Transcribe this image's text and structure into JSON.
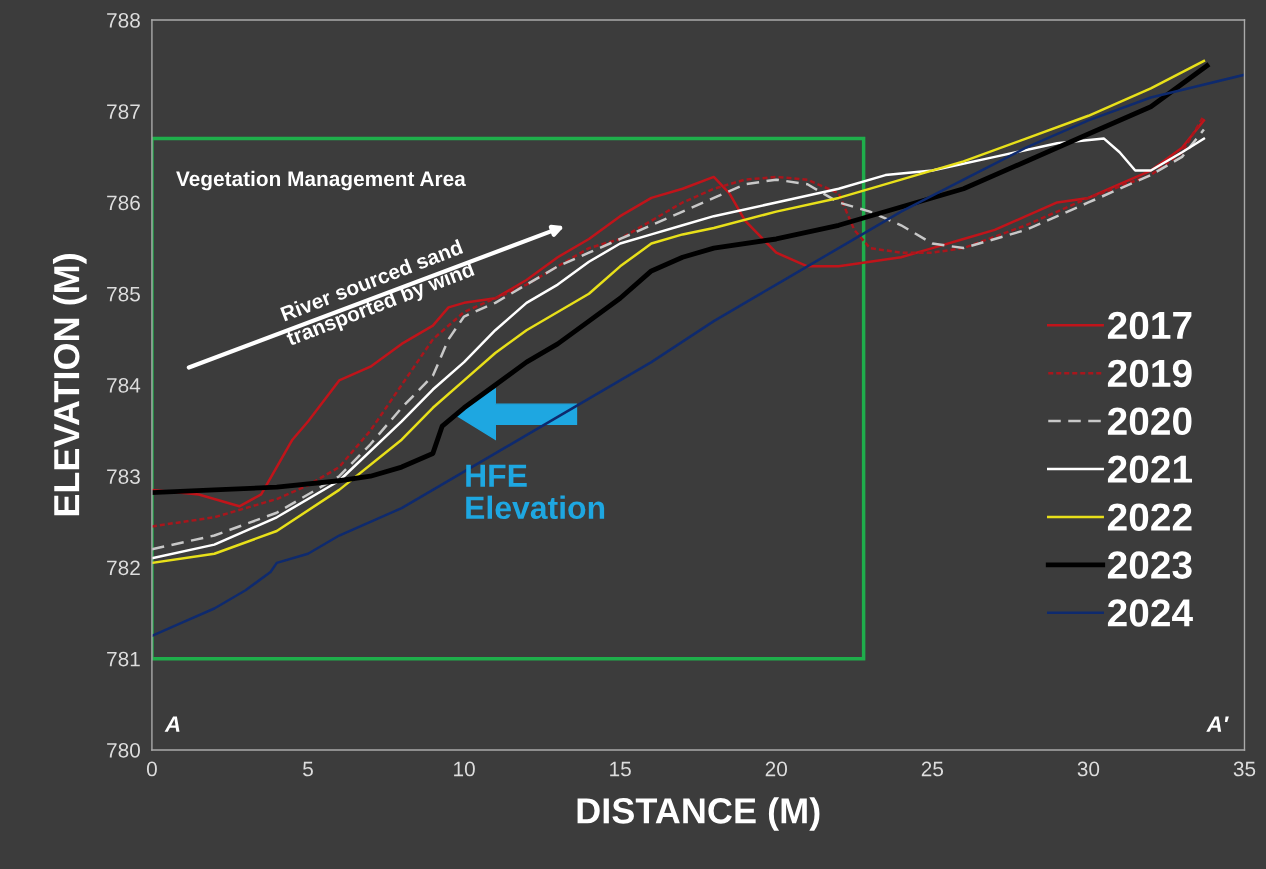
{
  "chart_data": {
    "type": "line",
    "xlabel": "DISTANCE (M)",
    "ylabel": "ELEVATION (M)",
    "xlim": [
      0,
      35
    ],
    "xticks": [
      0,
      5,
      10,
      15,
      20,
      25,
      30,
      35
    ],
    "ylim": [
      780,
      788
    ],
    "yticks": [
      780,
      781,
      782,
      783,
      784,
      785,
      786,
      787,
      788
    ],
    "grid": false,
    "legend": "right",
    "marker": "none",
    "annotations": [
      "Vegetation Management Area",
      "River sourced sand transported by wind",
      {
        "text": "HFE Elevation",
        "x": 9.4,
        "y": 783.55
      },
      "A",
      "A′"
    ],
    "series": [
      {
        "name": "2017",
        "color": "#c0141a",
        "line_style": "solid",
        "x": [
          0,
          1.5,
          2.8,
          3.5,
          4.5,
          5,
          6,
          7,
          8,
          9,
          9.5,
          10,
          11,
          12,
          13,
          14,
          15,
          16,
          17,
          18,
          18.5,
          19,
          20,
          21,
          22,
          23,
          24,
          25,
          26,
          27,
          28,
          29,
          30,
          31,
          32,
          33,
          33.7
        ],
        "values": [
          782.85,
          782.8,
          782.67,
          782.8,
          783.4,
          783.6,
          784.05,
          784.2,
          784.45,
          784.65,
          784.85,
          784.9,
          784.95,
          785.15,
          785.4,
          785.6,
          785.85,
          786.05,
          786.15,
          786.28,
          786.1,
          785.8,
          785.45,
          785.3,
          785.3,
          785.35,
          785.4,
          785.5,
          785.6,
          785.7,
          785.85,
          786.0,
          786.05,
          786.2,
          786.35,
          786.6,
          786.9
        ]
      },
      {
        "name": "2019",
        "color": "#a8161c",
        "line_style": "dotted",
        "x": [
          0,
          2,
          4,
          5,
          6,
          7,
          8,
          9,
          10,
          11,
          12,
          13,
          14,
          15,
          16,
          17,
          18,
          19,
          20,
          21,
          22,
          22.5,
          23,
          24,
          25,
          26,
          28,
          30,
          32,
          33,
          33.7
        ],
        "values": [
          782.45,
          782.55,
          782.75,
          782.9,
          783.1,
          783.5,
          784.0,
          784.5,
          784.8,
          784.95,
          785.1,
          785.3,
          785.5,
          785.6,
          785.8,
          786.0,
          786.15,
          786.25,
          786.28,
          786.25,
          786.1,
          785.7,
          785.5,
          785.45,
          785.45,
          785.5,
          785.75,
          786.05,
          786.3,
          786.55,
          786.95
        ]
      },
      {
        "name": "2020",
        "color": "#c8c8c8",
        "line_style": "dashed",
        "x": [
          0,
          2,
          4,
          6,
          7,
          8,
          9,
          9.5,
          10,
          11,
          12,
          13,
          14,
          15,
          16,
          17,
          18,
          19,
          20,
          21,
          22,
          23,
          24,
          25,
          26,
          28,
          30,
          32,
          33,
          33.7
        ],
        "values": [
          782.2,
          782.35,
          782.6,
          783.0,
          783.35,
          783.75,
          784.1,
          784.5,
          784.75,
          784.9,
          785.1,
          785.3,
          785.45,
          785.6,
          785.75,
          785.9,
          786.05,
          786.2,
          786.25,
          786.2,
          786.0,
          785.9,
          785.75,
          785.55,
          785.5,
          785.7,
          786.0,
          786.3,
          786.5,
          786.8
        ]
      },
      {
        "name": "2021",
        "color": "#ffffff",
        "line_style": "solid",
        "x": [
          0,
          2,
          4,
          6,
          8,
          9,
          10,
          11,
          12,
          13,
          14,
          15,
          16,
          17,
          18,
          20,
          22,
          23.5,
          25,
          27,
          29,
          30.5,
          31,
          31.5,
          32,
          33,
          33.7
        ],
        "values": [
          782.1,
          782.25,
          782.55,
          782.95,
          783.6,
          783.95,
          784.25,
          784.6,
          784.9,
          785.1,
          785.35,
          785.55,
          785.65,
          785.75,
          785.85,
          786.0,
          786.15,
          786.3,
          786.35,
          786.5,
          786.65,
          786.7,
          786.55,
          786.35,
          786.35,
          786.55,
          786.7
        ]
      },
      {
        "name": "2022",
        "color": "#e8e01a",
        "line_style": "solid",
        "x": [
          0,
          2,
          4,
          6,
          8,
          9,
          10,
          11,
          12,
          13,
          14,
          15,
          16,
          17,
          18,
          20,
          22,
          24,
          26,
          28,
          30,
          32,
          33.7
        ],
        "values": [
          782.05,
          782.15,
          782.4,
          782.85,
          783.4,
          783.75,
          784.05,
          784.35,
          784.6,
          784.8,
          785.0,
          785.3,
          785.55,
          785.65,
          785.72,
          785.9,
          786.05,
          786.25,
          786.45,
          786.7,
          786.95,
          787.25,
          787.55
        ]
      },
      {
        "name": "2023",
        "color": "#000000",
        "line_style": "solid",
        "x": [
          0,
          2,
          4,
          6,
          7,
          8,
          9,
          9.3,
          10,
          11,
          12,
          13,
          14,
          15,
          16,
          17,
          18,
          20,
          22,
          24,
          26,
          28,
          30,
          32,
          33.8
        ],
        "values": [
          782.82,
          782.85,
          782.88,
          782.95,
          783.0,
          783.1,
          783.25,
          783.55,
          783.75,
          784.0,
          784.25,
          784.45,
          784.7,
          784.95,
          785.25,
          785.4,
          785.5,
          785.6,
          785.75,
          785.95,
          786.15,
          786.45,
          786.75,
          787.05,
          787.5
        ]
      },
      {
        "name": "2024",
        "color": "#0e2a6e",
        "line_style": "solid",
        "x": [
          0,
          1,
          2,
          3,
          3.8,
          4,
          5,
          6,
          8,
          10,
          12,
          14,
          16,
          18,
          20,
          22,
          24,
          26,
          28,
          30,
          32,
          35
        ],
        "values": [
          781.25,
          781.4,
          781.55,
          781.75,
          781.95,
          782.05,
          782.15,
          782.35,
          782.65,
          783.05,
          783.45,
          783.85,
          784.25,
          784.7,
          785.1,
          785.5,
          785.9,
          786.25,
          786.6,
          786.9,
          787.15,
          787.4
        ]
      }
    ]
  }
}
